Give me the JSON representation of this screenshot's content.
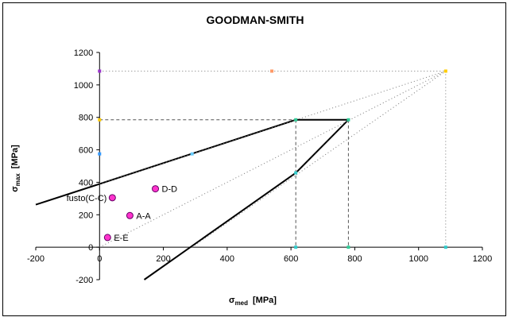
{
  "chart_data": {
    "type": "scatter",
    "title": "GOODMAN-SMITH",
    "xlabel": {
      "symbol": "σ",
      "subscript": "med",
      "unit": "[MPa]"
    },
    "ylabel": {
      "symbol": "σ",
      "subscript": "max",
      "unit": "[MPa]"
    },
    "xlim": [
      -200,
      1200
    ],
    "ylim": [
      -200,
      1200
    ],
    "xticks": [
      -200,
      0,
      200,
      400,
      600,
      800,
      1000,
      1200
    ],
    "yticks": [
      -200,
      0,
      200,
      400,
      600,
      800,
      1000,
      1200
    ],
    "grid": false,
    "legend": "none",
    "diagram_lines": [
      {
        "style": "solid",
        "points": [
          [
            -200,
            262
          ],
          [
            0,
            390
          ],
          [
            615,
            785
          ],
          [
            780,
            785
          ],
          [
            615,
            458
          ],
          [
            140,
            -200
          ]
        ]
      },
      {
        "style": "dotted",
        "points": [
          [
            0,
            1085
          ],
          [
            1085,
            1085
          ]
        ]
      },
      {
        "style": "dotted",
        "points": [
          [
            1085,
            1085
          ],
          [
            1085,
            0
          ]
        ]
      },
      {
        "style": "dotted",
        "points": [
          [
            0,
            390
          ],
          [
            1085,
            1085
          ]
        ]
      },
      {
        "style": "dotted",
        "points": [
          [
            0,
            0
          ],
          [
            1085,
            1085
          ]
        ]
      },
      {
        "style": "dotted",
        "points": [
          [
            290,
            0
          ],
          [
            1085,
            1085
          ]
        ]
      },
      {
        "style": "dashed",
        "points": [
          [
            0,
            785
          ],
          [
            615,
            785
          ]
        ]
      },
      {
        "style": "dashed",
        "points": [
          [
            615,
            785
          ],
          [
            615,
            0
          ]
        ]
      },
      {
        "style": "dashed",
        "points": [
          [
            780,
            785
          ],
          [
            780,
            0
          ]
        ]
      }
    ],
    "series": [
      {
        "labels": [
          "D-D",
          "fusto(C-C)",
          "A-A",
          "E-E"
        ],
        "x": [
          175,
          40,
          95,
          25
        ],
        "y": [
          360,
          305,
          195,
          60
        ],
        "color": "#ff33cc"
      }
    ],
    "markers": [
      {
        "x": 0,
        "y": 1085,
        "color": "#9933cc"
      },
      {
        "x": 1085,
        "y": 1085,
        "color": "#ffcc00"
      },
      {
        "x": 540,
        "y": 1085,
        "color": "#ff9966"
      },
      {
        "x": 0,
        "y": 785,
        "color": "#ffcc00"
      },
      {
        "x": 615,
        "y": 785,
        "color": "#33cc99"
      },
      {
        "x": 780,
        "y": 785,
        "color": "#33cc99"
      },
      {
        "x": 0,
        "y": 575,
        "color": "#3399ff"
      },
      {
        "x": 290,
        "y": 575,
        "color": "#66ccff"
      },
      {
        "x": 615,
        "y": 458,
        "color": "#33cccc"
      },
      {
        "x": 615,
        "y": 0,
        "color": "#33cccc"
      },
      {
        "x": 780,
        "y": 0,
        "color": "#33cc99"
      },
      {
        "x": 1085,
        "y": 0,
        "color": "#33cccc"
      }
    ]
  }
}
